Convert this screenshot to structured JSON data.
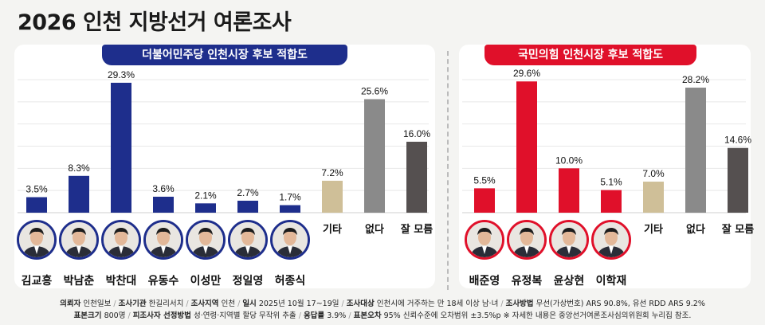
{
  "title": "2026 인천 지방선거 여론조사",
  "chart_data": [
    {
      "type": "bar",
      "title": "더불어민주당 인천시장 후보 적합도",
      "categories": [
        "김교흥",
        "박남춘",
        "박찬대",
        "유동수",
        "이성만",
        "정일영",
        "허종식",
        "기타",
        "없다",
        "잘 모름"
      ],
      "values": [
        3.5,
        8.3,
        29.3,
        3.6,
        2.1,
        2.7,
        1.7,
        7.2,
        25.6,
        16.0
      ],
      "value_labels": [
        "3.5%",
        "8.3%",
        "29.3%",
        "3.6%",
        "2.1%",
        "2.7%",
        "1.7%",
        "7.2%",
        "25.6%",
        "16.0%"
      ],
      "colors": [
        "#1e2e8c",
        "#1e2e8c",
        "#1e2e8c",
        "#1e2e8c",
        "#1e2e8c",
        "#1e2e8c",
        "#1e2e8c",
        "#cfbf98",
        "#8a8a8a",
        "#555050"
      ],
      "ylim": [
        0,
        30
      ],
      "grid": true
    },
    {
      "type": "bar",
      "title": "국민의힘 인천시장 후보 적합도",
      "categories": [
        "배준영",
        "유정복",
        "윤상현",
        "이학재",
        "기타",
        "없다",
        "잘 모름"
      ],
      "values": [
        5.5,
        29.6,
        10.0,
        5.1,
        7.0,
        28.2,
        14.6
      ],
      "value_labels": [
        "5.5%",
        "29.6%",
        "10.0%",
        "5.1%",
        "7.0%",
        "28.2%",
        "14.6%"
      ],
      "colors": [
        "#e0102a",
        "#e0102a",
        "#e0102a",
        "#e0102a",
        "#cfbf98",
        "#8a8a8a",
        "#555050"
      ],
      "ylim": [
        0,
        30
      ],
      "grid": true
    }
  ],
  "footer": {
    "line1": [
      {
        "k": "의뢰자",
        "v": "인천일보"
      },
      {
        "k": "조사기관",
        "v": "한길리서치"
      },
      {
        "k": "조사지역",
        "v": "인천"
      },
      {
        "k": "일시",
        "v": "2025년 10월 17~19일"
      },
      {
        "k": "조사대상",
        "v": "인천시에 거주하는 만 18세 이상 남·녀"
      },
      {
        "k": "조사방법",
        "v": "무선(가상번호) ARS 90.8%, 유선 RDD ARS 9.2%"
      }
    ],
    "line2": [
      {
        "k": "표본크기",
        "v": "800명"
      },
      {
        "k": "피조사자 선정방법",
        "v": "성·연령·지역별 할당 무작위 추출"
      },
      {
        "k": "응답률",
        "v": "3.9%"
      },
      {
        "k": "표본오차",
        "v": "95% 신뢰수준에 오차범위 ±3.5%p"
      }
    ],
    "note": "※ 자세한 내용은 중앙선거여론조사심의위원회 누리집 참조."
  }
}
